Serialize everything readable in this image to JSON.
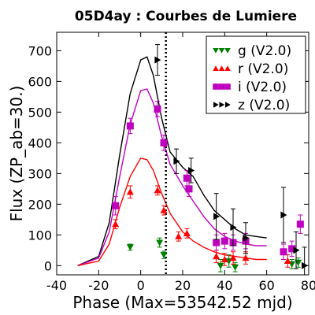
{
  "chart_data": {
    "type": "scatter",
    "title": "05D4ay : Courbes de Lumiere",
    "xlabel": "Phase (Max=53542.52 mjd)",
    "ylabel": "Flux (ZP_ab=30.)",
    "xlim": [
      -40,
      80
    ],
    "ylim": [
      -30,
      760
    ],
    "xticks": [
      -40,
      -20,
      0,
      20,
      40,
      60,
      80
    ],
    "yticks": [
      0,
      100,
      200,
      300,
      400,
      500,
      600,
      700
    ],
    "grid": false,
    "legend_position": "top-right",
    "max_phase_line": 12,
    "series": [
      {
        "name": "g (V2.0)",
        "marker": "triangle-down",
        "color": "#008000",
        "points": [
          {
            "x": -5,
            "y": 60,
            "err": 10
          },
          {
            "x": 9,
            "y": 75,
            "err": 15
          },
          {
            "x": 11,
            "y": 35,
            "err": 12
          },
          {
            "x": 38,
            "y": 0,
            "err": 20
          },
          {
            "x": 42,
            "y": 15,
            "err": 20
          },
          {
            "x": 45,
            "y": -5,
            "err": 15
          },
          {
            "x": 72,
            "y": 5,
            "err": 15
          },
          {
            "x": 75,
            "y": 10,
            "err": 15
          }
        ]
      },
      {
        "name": "r (V2.0)",
        "marker": "triangle-up",
        "color": "#ff0000",
        "points": [
          {
            "x": -12,
            "y": 135,
            "err": 15
          },
          {
            "x": -5,
            "y": 240,
            "err": 20
          },
          {
            "x": 8,
            "y": 245,
            "err": 15
          },
          {
            "x": 11,
            "y": 180,
            "err": 15
          },
          {
            "x": 18,
            "y": 95,
            "err": 15
          },
          {
            "x": 22,
            "y": 105,
            "err": 15
          },
          {
            "x": 36,
            "y": 30,
            "err": 20
          },
          {
            "x": 40,
            "y": 20,
            "err": 20
          },
          {
            "x": 44,
            "y": 25,
            "err": 20
          },
          {
            "x": 50,
            "y": 25,
            "err": 20
          },
          {
            "x": 70,
            "y": 15,
            "err": 20
          }
        ]
      },
      {
        "name": "i (V2.0)",
        "marker": "square",
        "color": "#bf00bf",
        "points": [
          {
            "x": -12,
            "y": 195,
            "err": 30
          },
          {
            "x": -5,
            "y": 455,
            "err": 25
          },
          {
            "x": 8,
            "y": 510,
            "err": 25
          },
          {
            "x": 11,
            "y": 400,
            "err": 25
          },
          {
            "x": 22,
            "y": 285,
            "err": 25
          },
          {
            "x": 23,
            "y": 250,
            "err": 25
          },
          {
            "x": 36,
            "y": 75,
            "err": 25
          },
          {
            "x": 40,
            "y": 80,
            "err": 25
          },
          {
            "x": 44,
            "y": 75,
            "err": 25
          },
          {
            "x": 50,
            "y": 80,
            "err": 25
          },
          {
            "x": 68,
            "y": 45,
            "err": 25
          },
          {
            "x": 72,
            "y": 55,
            "err": 25
          },
          {
            "x": 76,
            "y": 135,
            "err": 30
          }
        ]
      },
      {
        "name": "z (V2.0)",
        "marker": "triangle-right",
        "color": "#000000",
        "points": [
          {
            "x": 8,
            "y": 670,
            "err": 50
          },
          {
            "x": 17,
            "y": 340,
            "err": 40
          },
          {
            "x": 24,
            "y": 310,
            "err": 40
          },
          {
            "x": 36,
            "y": 160,
            "err": 75
          },
          {
            "x": 44,
            "y": 125,
            "err": 60
          },
          {
            "x": 50,
            "y": 90,
            "err": 50
          },
          {
            "x": 68,
            "y": 165,
            "err": 90
          },
          {
            "x": 74,
            "y": 50,
            "err": 60
          },
          {
            "x": 78,
            "y": 0,
            "err": 60
          }
        ]
      }
    ],
    "curves": [
      {
        "color": "#000000",
        "points": [
          [
            -30,
            0
          ],
          [
            -20,
            30
          ],
          [
            -15,
            140
          ],
          [
            -10,
            360
          ],
          [
            -5,
            560
          ],
          [
            0,
            670
          ],
          [
            3,
            680
          ],
          [
            6,
            620
          ],
          [
            10,
            480
          ],
          [
            14,
            370
          ],
          [
            20,
            320
          ],
          [
            25,
            290
          ],
          [
            30,
            230
          ],
          [
            35,
            180
          ],
          [
            40,
            150
          ],
          [
            45,
            120
          ],
          [
            50,
            100
          ],
          [
            55,
            95
          ],
          [
            60,
            90
          ]
        ]
      },
      {
        "color": "#bf00bf",
        "points": [
          [
            -30,
            0
          ],
          [
            -20,
            25
          ],
          [
            -15,
            110
          ],
          [
            -10,
            290
          ],
          [
            -5,
            460
          ],
          [
            0,
            570
          ],
          [
            3,
            575
          ],
          [
            6,
            530
          ],
          [
            10,
            420
          ],
          [
            14,
            330
          ],
          [
            20,
            260
          ],
          [
            25,
            210
          ],
          [
            30,
            160
          ],
          [
            35,
            120
          ],
          [
            40,
            95
          ],
          [
            45,
            80
          ],
          [
            50,
            70
          ],
          [
            55,
            65
          ],
          [
            60,
            65
          ]
        ]
      },
      {
        "color": "#ff0000",
        "points": [
          [
            -30,
            0
          ],
          [
            -20,
            15
          ],
          [
            -15,
            70
          ],
          [
            -10,
            190
          ],
          [
            -5,
            290
          ],
          [
            0,
            350
          ],
          [
            3,
            345
          ],
          [
            6,
            310
          ],
          [
            10,
            235
          ],
          [
            14,
            170
          ],
          [
            20,
            110
          ],
          [
            25,
            80
          ],
          [
            30,
            60
          ],
          [
            35,
            45
          ],
          [
            40,
            35
          ],
          [
            45,
            30
          ],
          [
            50,
            25
          ],
          [
            55,
            20
          ],
          [
            60,
            20
          ]
        ]
      }
    ]
  }
}
